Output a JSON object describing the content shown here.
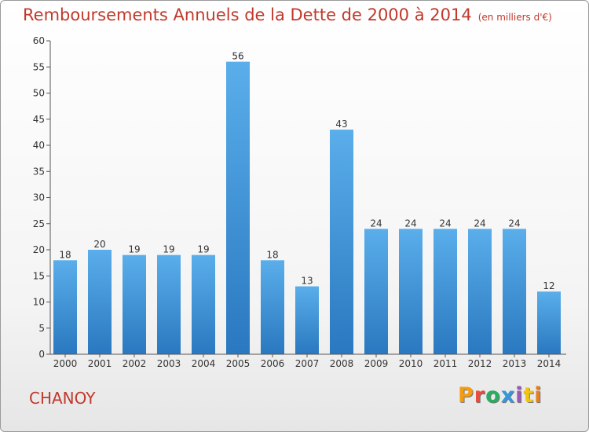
{
  "title": "Remboursements Annuels de la Dette de 2000 à 2014",
  "unit_note": "(en milliers d'€)",
  "commune": "CHANOY",
  "logo_icon": "proxiti-logo",
  "logo_text": "Proxiti",
  "chart_data": {
    "type": "bar",
    "title": "Remboursements Annuels de la Dette de 2000 à 2014",
    "subtitle": "(en milliers d'€)",
    "categories": [
      "2000",
      "2001",
      "2002",
      "2003",
      "2004",
      "2005",
      "2006",
      "2007",
      "2008",
      "2009",
      "2010",
      "2011",
      "2012",
      "2013",
      "2014"
    ],
    "values": [
      18,
      20,
      19,
      19,
      19,
      56,
      18,
      13,
      43,
      24,
      24,
      24,
      24,
      24,
      12
    ],
    "ylim": [
      0,
      60
    ],
    "yticks": [
      0,
      5,
      10,
      15,
      20,
      25,
      30,
      35,
      40,
      45,
      50,
      55,
      60
    ],
    "grid": false,
    "bar_color": "#3a8fd8"
  }
}
